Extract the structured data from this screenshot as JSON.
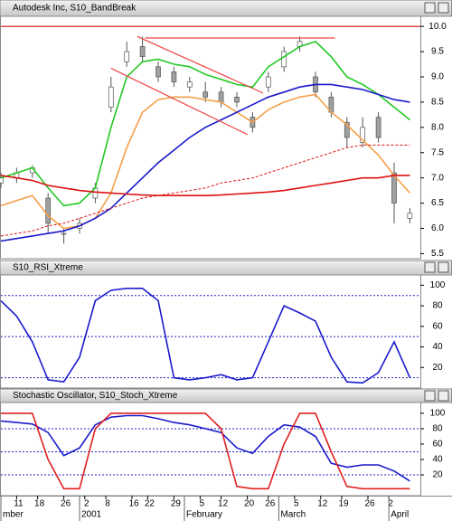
{
  "chart_data": [
    {
      "type": "candlestick",
      "title": "Autodesk Inc, S10_BandBreak",
      "x": [
        0,
        3,
        6,
        9,
        12,
        15,
        18,
        21,
        24,
        27,
        30,
        33,
        36,
        39,
        42,
        45,
        48,
        51,
        54,
        57,
        60,
        63,
        66,
        69,
        72,
        75,
        78
      ],
      "xlim": [
        0,
        80
      ],
      "ylim": [
        5.4,
        10.2
      ],
      "yticks": [
        {
          "value": 10,
          "label": "10.0"
        },
        9.5,
        {
          "value": 9,
          "label": "9.0"
        },
        8.5,
        {
          "value": 8,
          "label": "8.0"
        },
        7.5,
        {
          "value": 7,
          "label": "7.0"
        },
        6.5,
        {
          "value": 6,
          "label": "6.0"
        },
        5.5
      ],
      "open": [
        6.9,
        7.0,
        7.1,
        6.6,
        5.9,
        6.0,
        6.6,
        8.4,
        9.3,
        9.6,
        9.2,
        9.1,
        8.8,
        8.7,
        8.7,
        8.6,
        8.2,
        8.8,
        9.2,
        9.6,
        9.0,
        8.6,
        8.1,
        7.7,
        8.2,
        7.1,
        6.2
      ],
      "high": [
        7.1,
        7.2,
        7.25,
        6.7,
        6.0,
        6.2,
        6.9,
        9.0,
        9.7,
        9.8,
        9.3,
        9.2,
        9.0,
        8.9,
        8.8,
        8.7,
        8.3,
        9.1,
        9.6,
        9.8,
        9.1,
        8.7,
        8.2,
        8.2,
        8.3,
        7.3,
        6.4
      ],
      "low": [
        6.8,
        6.9,
        7.0,
        5.9,
        5.7,
        5.9,
        6.5,
        8.3,
        9.2,
        9.3,
        8.9,
        8.8,
        8.7,
        8.5,
        8.4,
        8.4,
        7.9,
        8.7,
        9.1,
        9.5,
        8.6,
        8.2,
        7.6,
        7.6,
        7.7,
        6.1,
        6.1
      ],
      "close": [
        7.0,
        7.1,
        7.2,
        6.1,
        5.9,
        6.1,
        6.8,
        8.8,
        9.5,
        9.4,
        9.0,
        8.9,
        8.9,
        8.6,
        8.5,
        8.5,
        8.0,
        9.0,
        9.5,
        9.7,
        8.7,
        8.3,
        7.8,
        8.0,
        7.8,
        6.5,
        6.3
      ],
      "up_color": "#ffffff",
      "down_color": "#a0a0a0",
      "series": [
        {
          "color": "#22c822",
          "values": [
            7.0,
            7.1,
            7.2,
            6.8,
            6.45,
            6.5,
            6.8,
            8.0,
            9.0,
            9.3,
            9.35,
            9.25,
            9.2,
            9.05,
            8.95,
            8.85,
            8.8,
            9.2,
            9.4,
            9.6,
            9.7,
            9.4,
            9.0,
            8.85,
            8.65,
            8.4,
            8.15
          ]
        },
        {
          "color": "#f5a04a",
          "values": [
            6.45,
            6.55,
            6.65,
            6.25,
            6.0,
            6.05,
            6.2,
            6.7,
            7.6,
            8.3,
            8.55,
            8.6,
            8.6,
            8.55,
            8.5,
            8.3,
            8.1,
            8.35,
            8.5,
            8.6,
            8.65,
            8.3,
            8.05,
            7.75,
            7.45,
            7.05,
            6.7
          ]
        },
        {
          "color": "#1a1acc",
          "values": [
            5.75,
            5.8,
            5.85,
            5.9,
            5.95,
            6.05,
            6.2,
            6.4,
            6.7,
            7.0,
            7.3,
            7.55,
            7.8,
            8.0,
            8.15,
            8.3,
            8.45,
            8.6,
            8.7,
            8.8,
            8.85,
            8.85,
            8.8,
            8.75,
            8.65,
            8.55,
            8.5
          ]
        },
        {
          "color": "#dd1111",
          "values": [
            7.05,
            7.0,
            6.95,
            6.85,
            6.8,
            6.75,
            6.72,
            6.7,
            6.68,
            6.66,
            6.65,
            6.65,
            6.65,
            6.65,
            6.66,
            6.68,
            6.7,
            6.72,
            6.75,
            6.8,
            6.85,
            6.9,
            6.95,
            7.0,
            7.0,
            7.05,
            7.05
          ]
        },
        {
          "color": "#dd1111",
          "style": "dashed",
          "values": [
            5.85,
            5.9,
            5.95,
            6.05,
            6.1,
            6.2,
            6.3,
            6.4,
            6.5,
            6.6,
            6.65,
            6.7,
            6.75,
            6.8,
            6.9,
            6.95,
            7.0,
            7.1,
            7.2,
            7.3,
            7.4,
            7.5,
            7.6,
            7.65,
            7.65,
            7.65,
            7.65
          ]
        }
      ],
      "trendlines": [
        {
          "color": "#dd1111",
          "x": [
            0,
            80
          ],
          "values": [
            10.0,
            10.0
          ]
        },
        {
          "color": "#ee4444",
          "x": [
            26,
            50
          ],
          "values": [
            9.8,
            8.68
          ]
        },
        {
          "color": "#ee4444",
          "x": [
            21,
            47
          ],
          "values": [
            9.17,
            7.86
          ]
        },
        {
          "color": "#ee4444",
          "x": [
            27.5,
            63.7
          ],
          "values": [
            9.77,
            9.77
          ]
        }
      ]
    },
    {
      "type": "line",
      "title": "S10_RSI_Xtreme",
      "x": [
        0,
        3,
        6,
        9,
        12,
        15,
        18,
        21,
        24,
        27,
        30,
        33,
        36,
        39,
        42,
        45,
        48,
        51,
        54,
        57,
        60,
        63,
        66,
        69,
        72,
        75,
        78
      ],
      "xlim": [
        0,
        80
      ],
      "ylim": [
        0,
        110
      ],
      "yticks": [
        20,
        40,
        60,
        80,
        100
      ],
      "levels": [
        90,
        50,
        10
      ],
      "level_color": "#2222cc",
      "series": [
        {
          "color": "#1a1acc",
          "values": [
            85,
            70,
            45,
            8,
            6,
            30,
            85,
            95,
            97,
            97,
            85,
            10,
            8,
            10,
            13,
            8,
            10,
            45,
            80,
            73,
            65,
            30,
            6,
            5,
            15,
            45,
            10
          ]
        }
      ]
    },
    {
      "type": "line",
      "title": "Stochastic Oscillator, S10_Stoch_Xtreme",
      "x": [
        0,
        3,
        6,
        9,
        12,
        15,
        18,
        21,
        24,
        27,
        30,
        33,
        36,
        39,
        42,
        45,
        48,
        51,
        54,
        57,
        60,
        63,
        66,
        69,
        72,
        75,
        78
      ],
      "xlim": [
        0,
        80
      ],
      "ylim": [
        -7,
        114
      ],
      "yticks": [
        20,
        40,
        60,
        80,
        100
      ],
      "levels": [
        80,
        50,
        20
      ],
      "level_color": "#2222cc",
      "series": [
        {
          "color": "#1a1acc",
          "values": [
            90,
            88,
            86,
            75,
            45,
            55,
            85,
            95,
            97,
            97,
            93,
            88,
            85,
            80,
            75,
            55,
            48,
            70,
            85,
            82,
            70,
            35,
            30,
            33,
            33,
            25,
            12
          ]
        },
        {
          "color": "#e02020",
          "values": [
            100,
            100,
            100,
            40,
            2,
            2,
            80,
            100,
            100,
            100,
            100,
            100,
            100,
            100,
            80,
            5,
            2,
            2,
            60,
            100,
            100,
            50,
            5,
            2,
            2,
            2,
            2
          ]
        }
      ],
      "xticks": [
        {
          "value": 3,
          "label": "11"
        },
        {
          "value": 7,
          "label": "18"
        },
        {
          "value": 12,
          "label": "26"
        },
        {
          "value": 16,
          "label": "2"
        },
        {
          "value": 20,
          "label": "8"
        },
        {
          "value": 25,
          "label": "16"
        },
        {
          "value": 28,
          "label": "22"
        },
        {
          "value": 33,
          "label": "29"
        },
        {
          "value": 38,
          "label": "5"
        },
        {
          "value": 42,
          "label": "12"
        },
        {
          "value": 47,
          "label": "20"
        },
        {
          "value": 51,
          "label": "26"
        },
        {
          "value": 56,
          "label": "5"
        },
        {
          "value": 61,
          "label": "12"
        },
        {
          "value": 65,
          "label": "19"
        },
        {
          "value": 70,
          "label": "26"
        },
        {
          "value": 74,
          "label": "2"
        }
      ],
      "month_ticks": [
        {
          "value": 0,
          "label": "mber"
        },
        {
          "value": 15,
          "label": "2001"
        },
        {
          "value": 35,
          "label": "February"
        },
        {
          "value": 53,
          "label": "March"
        },
        {
          "value": 74,
          "label": "April"
        }
      ]
    }
  ]
}
